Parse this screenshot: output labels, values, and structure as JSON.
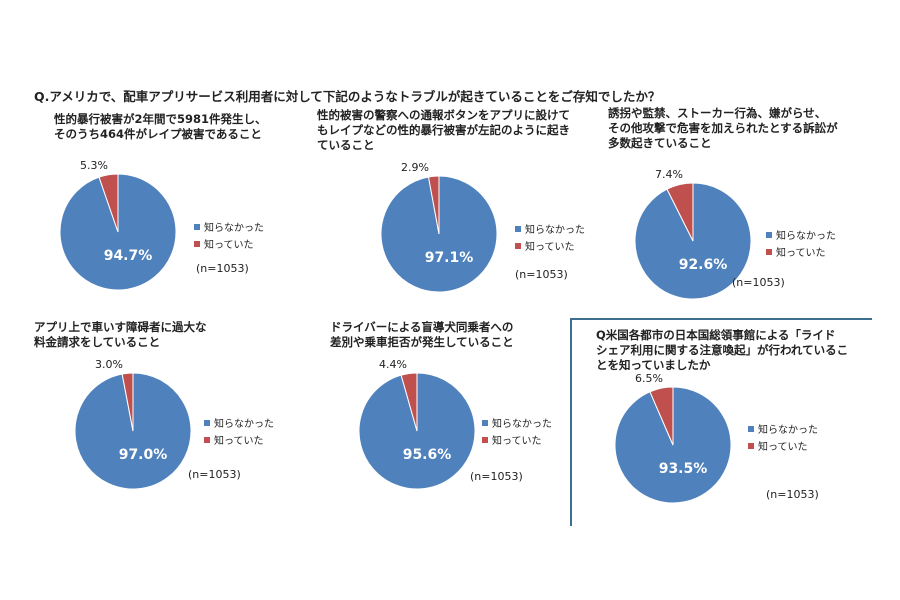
{
  "question": "Q.アメリカで、配車アプリサービス利用者に対して下記のようなトラブルが起きていることをご存知でしたか？",
  "colors": {
    "not_known": "#4f81bd",
    "known": "#c0504d"
  },
  "chart_data": [
    {
      "type": "pie",
      "title": [
        "性的暴行被害が2年間で5981件発生し、",
        "そのうち464件がレイプ被害であること"
      ],
      "slices": [
        {
          "label": "知らなかった",
          "value": 94.7,
          "display": "94.7%"
        },
        {
          "label": "知っていた",
          "value": 5.3,
          "display": "5.3%"
        }
      ],
      "legend": [
        "知らなかった",
        "知っていた"
      ],
      "note": "(n=1053)"
    },
    {
      "type": "pie",
      "title": [
        "性的被害の警察への通報ボタンをアプリに設けて",
        "もレイプなどの性的暴行被害が左記のように起き",
        "ていること"
      ],
      "slices": [
        {
          "label": "知らなかった",
          "value": 97.1,
          "display": "97.1%"
        },
        {
          "label": "知っていた",
          "value": 2.9,
          "display": "2.9%"
        }
      ],
      "legend": [
        "知らなかった",
        "知っていた"
      ],
      "note": "(n=1053)"
    },
    {
      "type": "pie",
      "title": [
        "誘拐や監禁、ストーカー行為、嫌がらせ、",
        "その他攻撃で危害を加えられたとする訴訟が",
        "多数起きていること"
      ],
      "slices": [
        {
          "label": "知らなかった",
          "value": 92.6,
          "display": "92.6%"
        },
        {
          "label": "知っていた",
          "value": 7.4,
          "display": "7.4%"
        }
      ],
      "legend": [
        "知らなかった",
        "知っていた"
      ],
      "note": "(n=1053)"
    },
    {
      "type": "pie",
      "title": [
        "アプリ上で車いす障碍者に過大な",
        "料金請求をしていること"
      ],
      "slices": [
        {
          "label": "知らなかった",
          "value": 97.0,
          "display": "97.0%"
        },
        {
          "label": "知っていた",
          "value": 3.0,
          "display": "3.0%"
        }
      ],
      "legend": [
        "知らなかった",
        "知っていた"
      ],
      "note": "(n=1053)"
    },
    {
      "type": "pie",
      "title": [
        "ドライバーによる盲導犬同乗者への",
        "差別や乗車拒否が発生していること"
      ],
      "slices": [
        {
          "label": "知らなかった",
          "value": 95.6,
          "display": "95.6%"
        },
        {
          "label": "知っていた",
          "value": 4.4,
          "display": "4.4%"
        }
      ],
      "legend": [
        "知らなかった",
        "知っていた"
      ],
      "note": "(n=1053)"
    },
    {
      "type": "pie",
      "title": [
        "Q米国各都市の日本国総領事館による「ライド",
        "シェア利用に関する注意喚起」が行われているこ",
        "とを知っていましたか"
      ],
      "slices": [
        {
          "label": "知らなかった",
          "value": 93.5,
          "display": "93.5%"
        },
        {
          "label": "知っていた",
          "value": 6.5,
          "display": "6.5%"
        }
      ],
      "legend": [
        "知らなかった",
        "知っていた"
      ],
      "note": "(n=1053)"
    }
  ]
}
